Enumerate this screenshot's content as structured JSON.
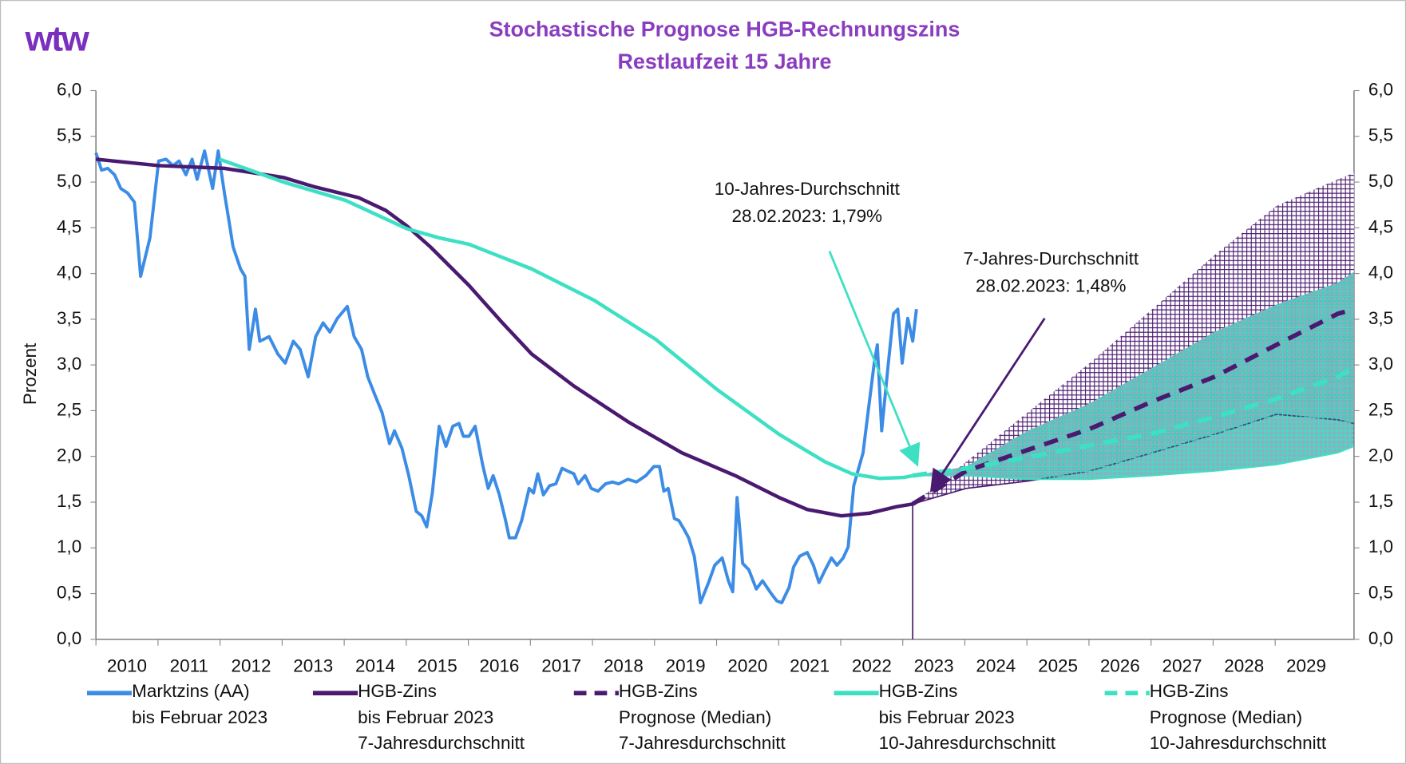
{
  "chart_data": {
    "type": "line",
    "logo": "wtw",
    "title": "Stochastische Prognose HGB-Rechnungszins",
    "subtitle": "Restlaufzeit 15 Jahre",
    "ylabel": "Prozent",
    "xlim": [
      2010,
      2030.27
    ],
    "xticks": [
      2010,
      2011,
      2012,
      2013,
      2014,
      2015,
      2016,
      2017,
      2018,
      2019,
      2020,
      2021,
      2022,
      2023,
      2024,
      2025,
      2026,
      2027,
      2028,
      2029
    ],
    "ylim": [
      0,
      6
    ],
    "yticks": [
      {
        "value": 0,
        "label": "0,0"
      },
      {
        "value": 0.5,
        "label": "0,5"
      },
      {
        "value": 1,
        "label": "1,0"
      },
      {
        "value": 1.5,
        "label": "1,5"
      },
      {
        "value": 2,
        "label": "2,0"
      },
      {
        "value": 2.5,
        "label": "2,5"
      },
      {
        "value": 3,
        "label": "3,0"
      },
      {
        "value": 3.5,
        "label": "3,5"
      },
      {
        "value": 4,
        "label": "4,0"
      },
      {
        "value": 4.5,
        "label": "4,5"
      },
      {
        "value": 5,
        "label": "5,0"
      },
      {
        "value": 5.5,
        "label": "5,5"
      },
      {
        "value": 6,
        "label": "6,0"
      }
    ],
    "y2lim": [
      0,
      6
    ],
    "y2ticks": [
      {
        "value": 0,
        "label": "0,0"
      },
      {
        "value": 0.5,
        "label": "0,5"
      },
      {
        "value": 1,
        "label": "1,0"
      },
      {
        "value": 1.5,
        "label": "1,5"
      },
      {
        "value": 2,
        "label": "2,0"
      },
      {
        "value": 2.5,
        "label": "2,5"
      },
      {
        "value": 3,
        "label": "3,0"
      },
      {
        "value": 3.5,
        "label": "3,5"
      },
      {
        "value": 4,
        "label": "4,0"
      },
      {
        "value": 4.5,
        "label": "4,5"
      },
      {
        "value": 5,
        "label": "5,0"
      },
      {
        "value": 5.5,
        "label": "5,5"
      },
      {
        "value": 6,
        "label": "6,0"
      }
    ],
    "grid": false,
    "bands": [
      {
        "color": "#4a1a70",
        "x": [
          2023.16,
          2024.02,
          2025.01,
          2026.01,
          2027.02,
          2028.02,
          2029.02,
          2030.01,
          2030.27
        ],
        "lower": [
          1.48,
          1.65,
          1.73,
          1.84,
          2.04,
          2.24,
          2.46,
          2.4,
          2.36
        ],
        "upper": [
          1.48,
          1.94,
          2.48,
          3.02,
          3.61,
          4.2,
          4.74,
          5.03,
          5.1
        ]
      },
      {
        "color": "#3ee0c4",
        "x": [
          2023.16,
          2024.02,
          2025.01,
          2026.01,
          2027.02,
          2028.02,
          2029.02,
          2030.01,
          2030.27
        ],
        "lower": [
          1.79,
          1.79,
          1.75,
          1.75,
          1.79,
          1.84,
          1.91,
          2.04,
          2.11
        ],
        "upper": [
          1.79,
          1.89,
          2.28,
          2.58,
          2.97,
          3.36,
          3.66,
          3.9,
          4.02
        ]
      }
    ],
    "series": [
      {
        "name": "Marktzins (AA)\nbis Februar 2023",
        "color": "#3c8ce6",
        "dashed": false,
        "x": [
          2010.0,
          2010.09,
          2010.19,
          2010.3,
          2010.4,
          2010.51,
          2010.62,
          2010.72,
          2010.87,
          2011.01,
          2011.13,
          2011.24,
          2011.34,
          2011.45,
          2011.55,
          2011.63,
          2011.75,
          2011.88,
          2011.97,
          2012.07,
          2012.14,
          2012.21,
          2012.33,
          2012.4,
          2012.47,
          2012.57,
          2012.64,
          2012.79,
          2012.93,
          2013.05,
          2013.18,
          2013.29,
          2013.42,
          2013.54,
          2013.66,
          2013.77,
          2013.89,
          2014.05,
          2014.16,
          2014.28,
          2014.38,
          2014.49,
          2014.61,
          2014.73,
          2014.81,
          2014.93,
          2015.04,
          2015.16,
          2015.25,
          2015.33,
          2015.42,
          2015.53,
          2015.64,
          2015.75,
          2015.85,
          2015.92,
          2016.01,
          2016.11,
          2016.23,
          2016.32,
          2016.4,
          2016.5,
          2016.6,
          2016.66,
          2016.76,
          2016.86,
          2016.98,
          2017.05,
          2017.12,
          2017.21,
          2017.31,
          2017.41,
          2017.51,
          2017.6,
          2017.7,
          2017.77,
          2017.88,
          2017.98,
          2018.09,
          2018.21,
          2018.32,
          2018.42,
          2018.57,
          2018.71,
          2018.86,
          2018.99,
          2019.08,
          2019.15,
          2019.22,
          2019.32,
          2019.39,
          2019.47,
          2019.55,
          2019.64,
          2019.7,
          2019.74,
          2019.87,
          2019.97,
          2020.09,
          2020.19,
          2020.26,
          2020.33,
          2020.42,
          2020.52,
          2020.64,
          2020.74,
          2020.88,
          2020.97,
          2021.05,
          2021.17,
          2021.24,
          2021.34,
          2021.46,
          2021.56,
          2021.65,
          2021.75,
          2021.85,
          2021.94,
          2022.04,
          2022.12,
          2022.21,
          2022.36,
          2022.44,
          2022.54,
          2022.59,
          2022.66,
          2022.76,
          2022.85,
          2022.92,
          2022.99,
          2023.08,
          2023.16,
          2023.22
        ],
        "values": [
          5.32,
          5.13,
          5.15,
          5.08,
          4.93,
          4.88,
          4.78,
          3.97,
          4.39,
          5.23,
          5.25,
          5.18,
          5.23,
          5.08,
          5.25,
          5.03,
          5.34,
          4.93,
          5.34,
          4.88,
          4.59,
          4.29,
          4.05,
          3.97,
          3.17,
          3.61,
          3.26,
          3.31,
          3.12,
          3.02,
          3.26,
          3.17,
          2.87,
          3.31,
          3.46,
          3.36,
          3.51,
          3.64,
          3.31,
          3.17,
          2.87,
          2.68,
          2.48,
          2.14,
          2.28,
          2.09,
          1.79,
          1.4,
          1.35,
          1.23,
          1.6,
          2.33,
          2.11,
          2.33,
          2.36,
          2.22,
          2.22,
          2.33,
          1.91,
          1.65,
          1.79,
          1.58,
          1.3,
          1.11,
          1.11,
          1.3,
          1.65,
          1.6,
          1.81,
          1.58,
          1.68,
          1.7,
          1.87,
          1.84,
          1.81,
          1.7,
          1.79,
          1.65,
          1.62,
          1.7,
          1.72,
          1.7,
          1.75,
          1.72,
          1.79,
          1.89,
          1.89,
          1.62,
          1.65,
          1.32,
          1.3,
          1.21,
          1.11,
          0.91,
          0.62,
          0.4,
          0.62,
          0.81,
          0.89,
          0.64,
          0.52,
          1.55,
          0.83,
          0.76,
          0.55,
          0.64,
          0.5,
          0.42,
          0.4,
          0.57,
          0.79,
          0.91,
          0.95,
          0.81,
          0.62,
          0.76,
          0.89,
          0.81,
          0.89,
          1.01,
          1.68,
          2.04,
          2.48,
          3.02,
          3.22,
          2.28,
          2.97,
          3.56,
          3.61,
          3.02,
          3.51,
          3.26,
          3.61
        ]
      },
      {
        "name": "HGB-Zins\nbis Februar 2023\n7-Jahresdurchschnitt",
        "color": "#4a1a70",
        "dashed": false,
        "x": [
          2010.0,
          2011.01,
          2012.07,
          2013.02,
          2013.51,
          2014.23,
          2014.67,
          2015.01,
          2015.39,
          2016.01,
          2016.55,
          2017.02,
          2017.7,
          2018.57,
          2019.44,
          2020.3,
          2021.01,
          2021.46,
          2022.01,
          2022.47,
          2022.9,
          2023.16
        ],
        "values": [
          5.25,
          5.18,
          5.15,
          5.05,
          4.95,
          4.83,
          4.69,
          4.52,
          4.29,
          3.87,
          3.46,
          3.12,
          2.77,
          2.38,
          2.04,
          1.79,
          1.55,
          1.42,
          1.35,
          1.38,
          1.45,
          1.48
        ]
      },
      {
        "name": "HGB-Zins\nPrognose (Median)\n7-Jahresdurchschnitt",
        "color": "#4a1a70",
        "dashed": true,
        "x": [
          2023.16,
          2024.02,
          2025.01,
          2026.01,
          2027.02,
          2028.02,
          2029.02,
          2030.01,
          2030.27
        ],
        "values": [
          1.48,
          1.84,
          2.07,
          2.3,
          2.6,
          2.87,
          3.22,
          3.56,
          3.61
        ]
      },
      {
        "name": "HGB-Zins\nbis Februar 2023\n10-Jahresdurchschnitt",
        "color": "#3ee0c4",
        "dashed": false,
        "x": [
          2011.99,
          2013.02,
          2014.02,
          2015.01,
          2015.53,
          2016.01,
          2017.02,
          2018.02,
          2019.02,
          2020.01,
          2021.01,
          2021.75,
          2022.18,
          2022.62,
          2023.02,
          2023.16
        ],
        "values": [
          5.25,
          5.0,
          4.8,
          4.49,
          4.39,
          4.32,
          4.05,
          3.71,
          3.28,
          2.73,
          2.24,
          1.94,
          1.81,
          1.76,
          1.77,
          1.79
        ]
      },
      {
        "name": "HGB-Zins\nPrognose (Median)\n10-Jahresdurchschnitt",
        "color": "#3ee0c4",
        "dashed": true,
        "x": [
          2023.16,
          2024.02,
          2025.01,
          2026.01,
          2027.02,
          2028.02,
          2029.02,
          2030.01,
          2030.27
        ],
        "values": [
          1.79,
          1.87,
          1.99,
          2.12,
          2.25,
          2.43,
          2.63,
          2.87,
          2.97
        ]
      }
    ],
    "marker_x": 2023.16,
    "annotations": [
      {
        "lines": [
          "10-Jahres-Durchschnitt",
          "28.02.2023: 1,79%"
        ]
      },
      {
        "lines": [
          "7-Jahres-Durchschnitt",
          "28.02.2023: 1,48%"
        ]
      }
    ]
  }
}
